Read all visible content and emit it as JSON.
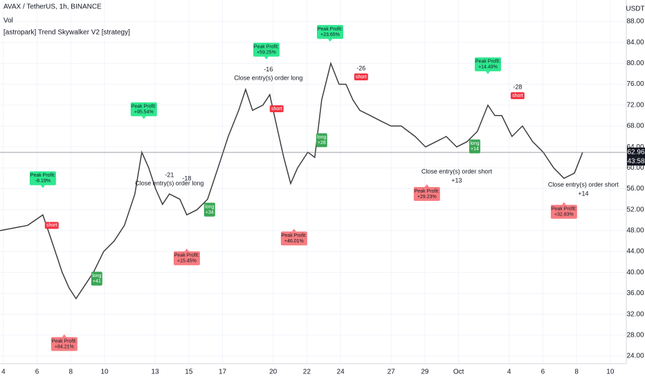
{
  "chart_data": {
    "type": "line",
    "title": "AVAX / TetherUS, 1h, BINANCE",
    "indicators": [
      "Vol",
      "[astropark] Trend Skywalker V2 [strategy]"
    ],
    "currency": "USDT",
    "last_price": 62.96,
    "countdown": "43:58",
    "color": "#3b3b3b",
    "x": [
      3.79,
      4.62,
      5.44,
      6.34,
      6.87,
      7.49,
      7.9,
      8.31,
      8.72,
      9.34,
      9.95,
      10.57,
      11.18,
      11.8,
      12.21,
      12.62,
      13.03,
      13.44,
      13.85,
      14.47,
      14.88,
      15.49,
      16.11,
      16.73,
      17.34,
      17.96,
      18.37,
      18.78,
      19.39,
      19.8,
      20.21,
      20.63,
      21.04,
      21.45,
      22.06,
      22.47,
      22.88,
      23.42,
      23.91,
      24.32,
      24.73,
      25.14,
      25.76,
      26.37,
      26.99,
      27.6,
      28.42,
      29.04,
      29.66,
      30.27,
      30.89,
      31.5,
      32.12,
      32.74,
      33.15,
      33.56,
      34.17,
      34.79,
      35.4,
      36.02,
      36.64,
      37.25,
      37.87,
      38.36
    ],
    "values": [
      48,
      48.5,
      49,
      51,
      46,
      40,
      37,
      35,
      37,
      40,
      44,
      46,
      49,
      55,
      63,
      60,
      56,
      53,
      55,
      54,
      51,
      52,
      54,
      60,
      66,
      71,
      75,
      71,
      72,
      74,
      68,
      62,
      57,
      60,
      63,
      62,
      73,
      80,
      76,
      76,
      73,
      71,
      70,
      69,
      68,
      68,
      66,
      64,
      65,
      66,
      64,
      65,
      67,
      72,
      70,
      70,
      66,
      68,
      65,
      63,
      60,
      58,
      59,
      63
    ],
    "xlim": [
      3.8,
      40.95
    ],
    "xticks": [
      4,
      6,
      8,
      10,
      13,
      15,
      17,
      20,
      22,
      24,
      27,
      29,
      {
        "value": 31,
        "label": "Oct"
      },
      {
        "value": 34,
        "label": "4"
      },
      {
        "value": 36,
        "label": "6"
      },
      {
        "value": 38,
        "label": "8"
      },
      {
        "value": 40,
        "label": "10"
      }
    ],
    "ylim": [
      22.54,
      92.11
    ],
    "yticks": [
      {
        "value": 24,
        "label": "24.00"
      },
      {
        "value": 28,
        "label": "28.00"
      },
      {
        "value": 32,
        "label": "32.00"
      },
      {
        "value": 36,
        "label": "36.00"
      },
      {
        "value": 40,
        "label": "40.00"
      },
      {
        "value": 44,
        "label": "44.00"
      },
      {
        "value": 48,
        "label": "48.00"
      },
      {
        "value": 52,
        "label": "52.00"
      },
      {
        "value": 56,
        "label": "56.00"
      },
      {
        "value": 60,
        "label": "60.00"
      },
      {
        "value": 64,
        "label": "64.00"
      },
      {
        "value": 68,
        "label": "68.00"
      },
      {
        "value": 72,
        "label": "72.00"
      },
      {
        "value": 76,
        "label": "76.00"
      },
      {
        "value": 80,
        "label": "80.00"
      },
      {
        "value": 84,
        "label": "84.00"
      },
      {
        "value": 88,
        "label": "88.00"
      }
    ],
    "annotations": [
      {
        "kind": "green",
        "x": 6.34,
        "y": 58,
        "lines": [
          "Peak Profit:",
          "-8.19%"
        ]
      },
      {
        "kind": "green",
        "x": 12.33,
        "y": 71.2,
        "lines": [
          "Peak Profit:",
          "+95.54%"
        ]
      },
      {
        "kind": "green",
        "x": 19.6,
        "y": 82.6,
        "lines": [
          "Peak Profit:",
          "+59.25%"
        ]
      },
      {
        "kind": "green",
        "x": 23.38,
        "y": 86,
        "lines": [
          "Peak Profit:",
          "+23.65%"
        ]
      },
      {
        "kind": "green",
        "x": 32.74,
        "y": 79.8,
        "lines": [
          "Peak Profit:",
          "+14.49%"
        ]
      },
      {
        "kind": "red",
        "x": 7.61,
        "y": 26.3,
        "lines": [
          "Peak Profit:",
          "+84.21%"
        ]
      },
      {
        "kind": "red",
        "x": 14.88,
        "y": 42.7,
        "lines": [
          "Peak Profit:",
          "+15.45%"
        ]
      },
      {
        "kind": "red",
        "x": 21.24,
        "y": 46.5,
        "lines": [
          "Peak Profit:",
          "+46.01%"
        ]
      },
      {
        "kind": "red",
        "x": 29.12,
        "y": 55,
        "lines": [
          "Peak Profit:",
          "+29.23%"
        ]
      },
      {
        "kind": "red",
        "x": 37.25,
        "y": 51.6,
        "lines": [
          "Peak Profit:",
          "+32.83%"
        ]
      },
      {
        "kind": "text",
        "x": 19.72,
        "y": 78.8,
        "lines": [
          "-16"
        ]
      },
      {
        "kind": "text",
        "x": 19.72,
        "y": 77.1,
        "lines": [
          "Close entry(s) order long"
        ]
      },
      {
        "kind": "text",
        "x": 13.85,
        "y": 58.6,
        "lines": [
          "-21"
        ]
      },
      {
        "kind": "text",
        "x": 14.88,
        "y": 57.9,
        "lines": [
          "-18"
        ]
      },
      {
        "kind": "text",
        "x": 13.85,
        "y": 57.0,
        "lines": [
          "Close entry(s) order long"
        ]
      },
      {
        "kind": "text",
        "x": 30.89,
        "y": 59.2,
        "lines": [
          "Close entry(s) order short"
        ]
      },
      {
        "kind": "text",
        "x": 30.89,
        "y": 57.5,
        "lines": [
          "+13"
        ]
      },
      {
        "kind": "text",
        "x": 38.4,
        "y": 56.7,
        "lines": [
          "Close entry(s) order short"
        ]
      },
      {
        "kind": "text",
        "x": 38.4,
        "y": 55.0,
        "lines": [
          "+14"
        ]
      },
      {
        "kind": "text",
        "x": 25.22,
        "y": 79.0,
        "lines": [
          "-26"
        ]
      },
      {
        "kind": "text",
        "x": 34.5,
        "y": 75.4,
        "lines": [
          "-28"
        ]
      },
      {
        "kind": "short",
        "x": 6.87,
        "y": 49.0,
        "lines": [
          "short"
        ]
      },
      {
        "kind": "short",
        "x": 20.21,
        "y": 71.3,
        "lines": [
          "short"
        ]
      },
      {
        "kind": "short",
        "x": 25.22,
        "y": 77.4,
        "lines": [
          "short"
        ]
      },
      {
        "kind": "short",
        "x": 34.5,
        "y": 73.8,
        "lines": [
          "short"
        ]
      },
      {
        "kind": "long",
        "x": 9.54,
        "y": 38.8,
        "lines": [
          "long",
          "+41"
        ]
      },
      {
        "kind": "long",
        "x": 16.23,
        "y": 52.0,
        "lines": [
          "long",
          "+34"
        ]
      },
      {
        "kind": "long",
        "x": 22.88,
        "y": 65.3,
        "lines": [
          "long",
          "+28"
        ]
      },
      {
        "kind": "long",
        "x": 31.96,
        "y": 64.1,
        "lines": [
          "long",
          "+14"
        ]
      }
    ]
  }
}
